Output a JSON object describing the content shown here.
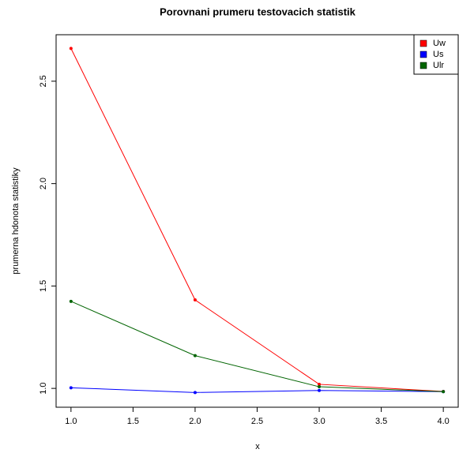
{
  "chart_data": {
    "type": "line",
    "title": "Porovnani prumeru testovacich statistik",
    "x_label": "x",
    "y_label": "prumerna hdonota statistiky",
    "x": [
      1,
      2,
      3,
      4
    ],
    "series": [
      {
        "name": "Uw",
        "color": "#ff0000",
        "values": [
          2.66,
          1.432,
          1.02,
          0.985
        ]
      },
      {
        "name": "Us",
        "color": "#0000ff",
        "values": [
          1.003,
          0.98,
          0.99,
          0.984
        ]
      },
      {
        "name": "Ulr",
        "color": "#006400",
        "values": [
          1.425,
          1.16,
          1.008,
          0.984
        ]
      }
    ],
    "xlim": [
      0.88,
      4.12
    ],
    "ylim": [
      0.908,
      2.727
    ],
    "xticks": [
      {
        "value": 1,
        "label": "1.0"
      },
      1.5,
      {
        "value": 2,
        "label": "2.0"
      },
      2.5,
      {
        "value": 3,
        "label": "3.0"
      },
      3.5,
      {
        "value": 4,
        "label": "4.0"
      }
    ],
    "yticks": [
      {
        "value": 1,
        "label": "1.0"
      },
      1.5,
      {
        "value": 2,
        "label": "2.0"
      },
      2.5
    ],
    "legend": "top-right"
  }
}
